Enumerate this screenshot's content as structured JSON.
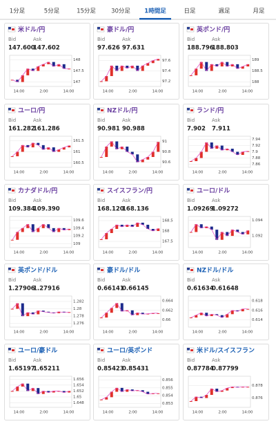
{
  "tabs": [
    "1分足",
    "5分足",
    "15分足",
    "30分足",
    "1時間足",
    "日足",
    "週足",
    "月足"
  ],
  "selected_tab": 4,
  "bid_label": "Bid",
  "ask_label": "Ask",
  "time_labels": [
    "14:00",
    "2:00",
    "14:00"
  ],
  "cards": [
    {
      "title": "米ドル/円",
      "color": "#6a3fa0",
      "bid": "147.600",
      "ask": "147.602",
      "ylim": [
        146.8,
        148.2
      ],
      "yticks": [
        147,
        147.5,
        148
      ],
      "closes": [
        147.1,
        147.0,
        147.3,
        147.6,
        147.5,
        147.7,
        147.8,
        147.9,
        147.7,
        147.8,
        147.6,
        147.6
      ]
    },
    {
      "title": "豪ドル/円",
      "color": "#6a3fa0",
      "bid": "97.626",
      "ask": "97.631",
      "ylim": [
        97.1,
        97.7
      ],
      "yticks": [
        97.2,
        97.4,
        97.6
      ],
      "closes": [
        97.2,
        97.3,
        97.5,
        97.4,
        97.5,
        97.45,
        97.5,
        97.4,
        97.5,
        97.55,
        97.6,
        97.63
      ]
    },
    {
      "title": "英ポンド/円",
      "color": "#6a3fa0",
      "bid": "188.796",
      "ask": "188.803",
      "ylim": [
        187.8,
        189.2
      ],
      "yticks": [
        188,
        188.5,
        189
      ],
      "closes": [
        188.3,
        188.6,
        188.9,
        188.5,
        188.8,
        188.7,
        188.9,
        188.7,
        188.8,
        188.6,
        188.7,
        188.8
      ]
    },
    {
      "title": "ユーロ/円",
      "color": "#6a3fa0",
      "bid": "161.282",
      "ask": "161.286",
      "ylim": [
        160.3,
        161.7
      ],
      "yticks": [
        160.5,
        161,
        161.5
      ],
      "closes": [
        160.8,
        161.0,
        161.3,
        161.2,
        161.4,
        161.3,
        161.1,
        161.2,
        161.0,
        161.1,
        161.2,
        161.28
      ]
    },
    {
      "title": "NZドル/円",
      "color": "#6a3fa0",
      "bid": "90.981",
      "ask": "90.988",
      "ylim": [
        90.5,
        91.1
      ],
      "yticks": [
        90.6,
        90.8,
        91
      ],
      "closes": [
        90.7,
        90.9,
        91.0,
        90.85,
        90.9,
        90.8,
        90.75,
        90.6,
        90.65,
        90.7,
        90.8,
        90.99
      ]
    },
    {
      "title": "ランド/円",
      "color": "#6a3fa0",
      "bid": "7.902",
      "ask": "7.911",
      "ylim": [
        7.85,
        7.95
      ],
      "yticks": [
        7.86,
        7.88,
        7.9,
        7.92,
        7.94
      ],
      "closes": [
        7.87,
        7.88,
        7.9,
        7.93,
        7.91,
        7.92,
        7.905,
        7.91,
        7.9,
        7.89,
        7.9,
        7.902
      ]
    },
    {
      "title": "カナダドル/円",
      "color": "#6a3fa0",
      "bid": "109.384",
      "ask": "109.390",
      "ylim": [
        108.9,
        109.7
      ],
      "yticks": [
        109,
        109.2,
        109.4,
        109.6
      ],
      "closes": [
        109.1,
        109.3,
        109.4,
        109.5,
        109.3,
        109.4,
        109.5,
        109.4,
        109.3,
        109.4,
        109.35,
        109.38
      ]
    },
    {
      "title": "スイスフラン/円",
      "color": "#6a3fa0",
      "bid": "168.120",
      "ask": "168.136",
      "ylim": [
        167.2,
        168.7
      ],
      "yticks": [
        167.5,
        168,
        168.5
      ],
      "closes": [
        167.6,
        167.9,
        168.1,
        168.3,
        168.2,
        168.3,
        168.2,
        168.4,
        168.3,
        168.1,
        168.0,
        168.12
      ]
    },
    {
      "title": "ユーロ/ドル",
      "color": "#6a3fa0",
      "bid": "1.09269",
      "ask": "1.09272",
      "ylim": [
        1.0905,
        1.0945
      ],
      "yticks": [
        1.092,
        1.094
      ],
      "closes": [
        1.0925,
        1.0935,
        1.093,
        1.0932,
        1.0928,
        1.0915,
        1.0925,
        1.092,
        1.0928,
        1.0925,
        1.0922,
        1.0927
      ]
    },
    {
      "title": "英ポンド/ドル",
      "color": "#1a5fb4",
      "bid": "1.27906",
      "ask": "1.27916",
      "ylim": [
        1.275,
        1.2835
      ],
      "yticks": [
        1.276,
        1.278,
        1.28,
        1.282
      ],
      "closes": [
        1.28,
        1.2815,
        1.278,
        1.279,
        1.2785,
        1.2795,
        1.2792,
        1.279,
        1.2788,
        1.2792,
        1.279,
        1.2791
      ]
    },
    {
      "title": "豪ドル/ドル",
      "color": "#1a5fb4",
      "bid": "0.66141",
      "ask": "0.66145",
      "ylim": [
        0.6585,
        0.665
      ],
      "yticks": [
        0.66,
        0.662,
        0.664
      ],
      "closes": [
        0.6605,
        0.6615,
        0.6625,
        0.6635,
        0.6618,
        0.662,
        0.661,
        0.6615,
        0.6612,
        0.6613,
        0.6614,
        0.6614
      ]
    },
    {
      "title": "NZドル/ドル",
      "color": "#1a5fb4",
      "bid": "0.61634",
      "ask": "0.61648",
      "ylim": [
        0.6125,
        0.619
      ],
      "yticks": [
        0.614,
        0.616,
        0.618
      ],
      "closes": [
        0.6145,
        0.615,
        0.6155,
        0.6148,
        0.6152,
        0.615,
        0.6145,
        0.6152,
        0.616,
        0.6158,
        0.6163,
        0.6163
      ]
    },
    {
      "title": "ユーロ/豪ドル",
      "color": "#1a5fb4",
      "bid": "1.65197",
      "ask": "1.65211",
      "ylim": [
        1.6465,
        1.657
      ],
      "yticks": [
        1.648,
        1.65,
        1.652,
        1.654,
        1.656
      ],
      "closes": [
        1.652,
        1.6535,
        1.6545,
        1.652,
        1.653,
        1.651,
        1.652,
        1.6515,
        1.652,
        1.652,
        1.6515,
        1.652
      ]
    },
    {
      "title": "ユーロ/英ポンド",
      "color": "#1a5fb4",
      "bid": "0.85423",
      "ask": "0.85431",
      "ylim": [
        0.8525,
        0.8565
      ],
      "yticks": [
        0.853,
        0.854,
        0.855,
        0.856
      ],
      "closes": [
        0.8535,
        0.8538,
        0.8545,
        0.855,
        0.8545,
        0.8548,
        0.8546,
        0.8547,
        0.8545,
        0.8542,
        0.8543,
        0.8543
      ]
    },
    {
      "title": "米ドル/スイスフラン",
      "color": "#1a5fb4",
      "bid": "0.87784",
      "ask": "0.87799",
      "ylim": [
        0.8745,
        0.8795
      ],
      "yticks": [
        0.876,
        0.878
      ],
      "closes": [
        0.8755,
        0.8762,
        0.876,
        0.8765,
        0.8775,
        0.877,
        0.8772,
        0.8776,
        0.8778,
        0.8777,
        0.8778,
        0.8778
      ]
    }
  ]
}
